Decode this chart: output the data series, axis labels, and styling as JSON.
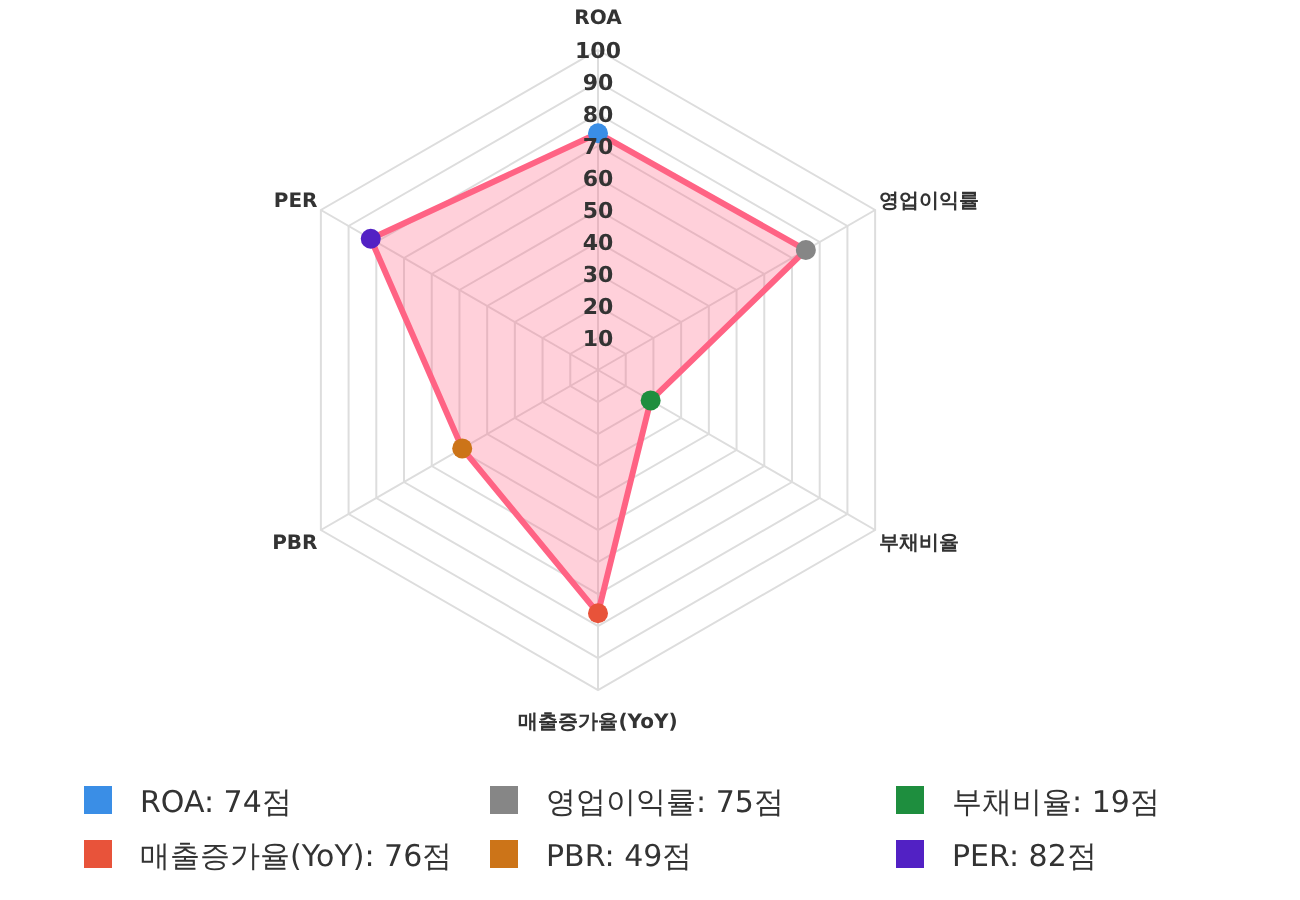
{
  "chart_data": {
    "type": "radar",
    "categories": [
      "ROA",
      "영업이익률",
      "부채비율",
      "매출증가율(YoY)",
      "PBR",
      "PER"
    ],
    "series": [
      {
        "color": "#ff6384",
        "colors": [
          "#3a8ee6",
          "#868686",
          "#1e8e3e",
          "#e8533a",
          "#cc7418",
          "#5221c4"
        ],
        "values": [
          74,
          75,
          19,
          76,
          49,
          82
        ]
      }
    ],
    "annotations": [
      "ROA: 74점",
      "영업이익률: 75점",
      "부채비율: 19점",
      "매출증가율(YoY): 76점",
      "PBR: 49점",
      "PER: 82점"
    ],
    "ylim": [
      0,
      100
    ],
    "yticks": [
      10,
      20,
      30,
      40,
      50,
      60,
      70,
      80,
      90,
      100
    ],
    "grid": true,
    "marker": "circle"
  }
}
